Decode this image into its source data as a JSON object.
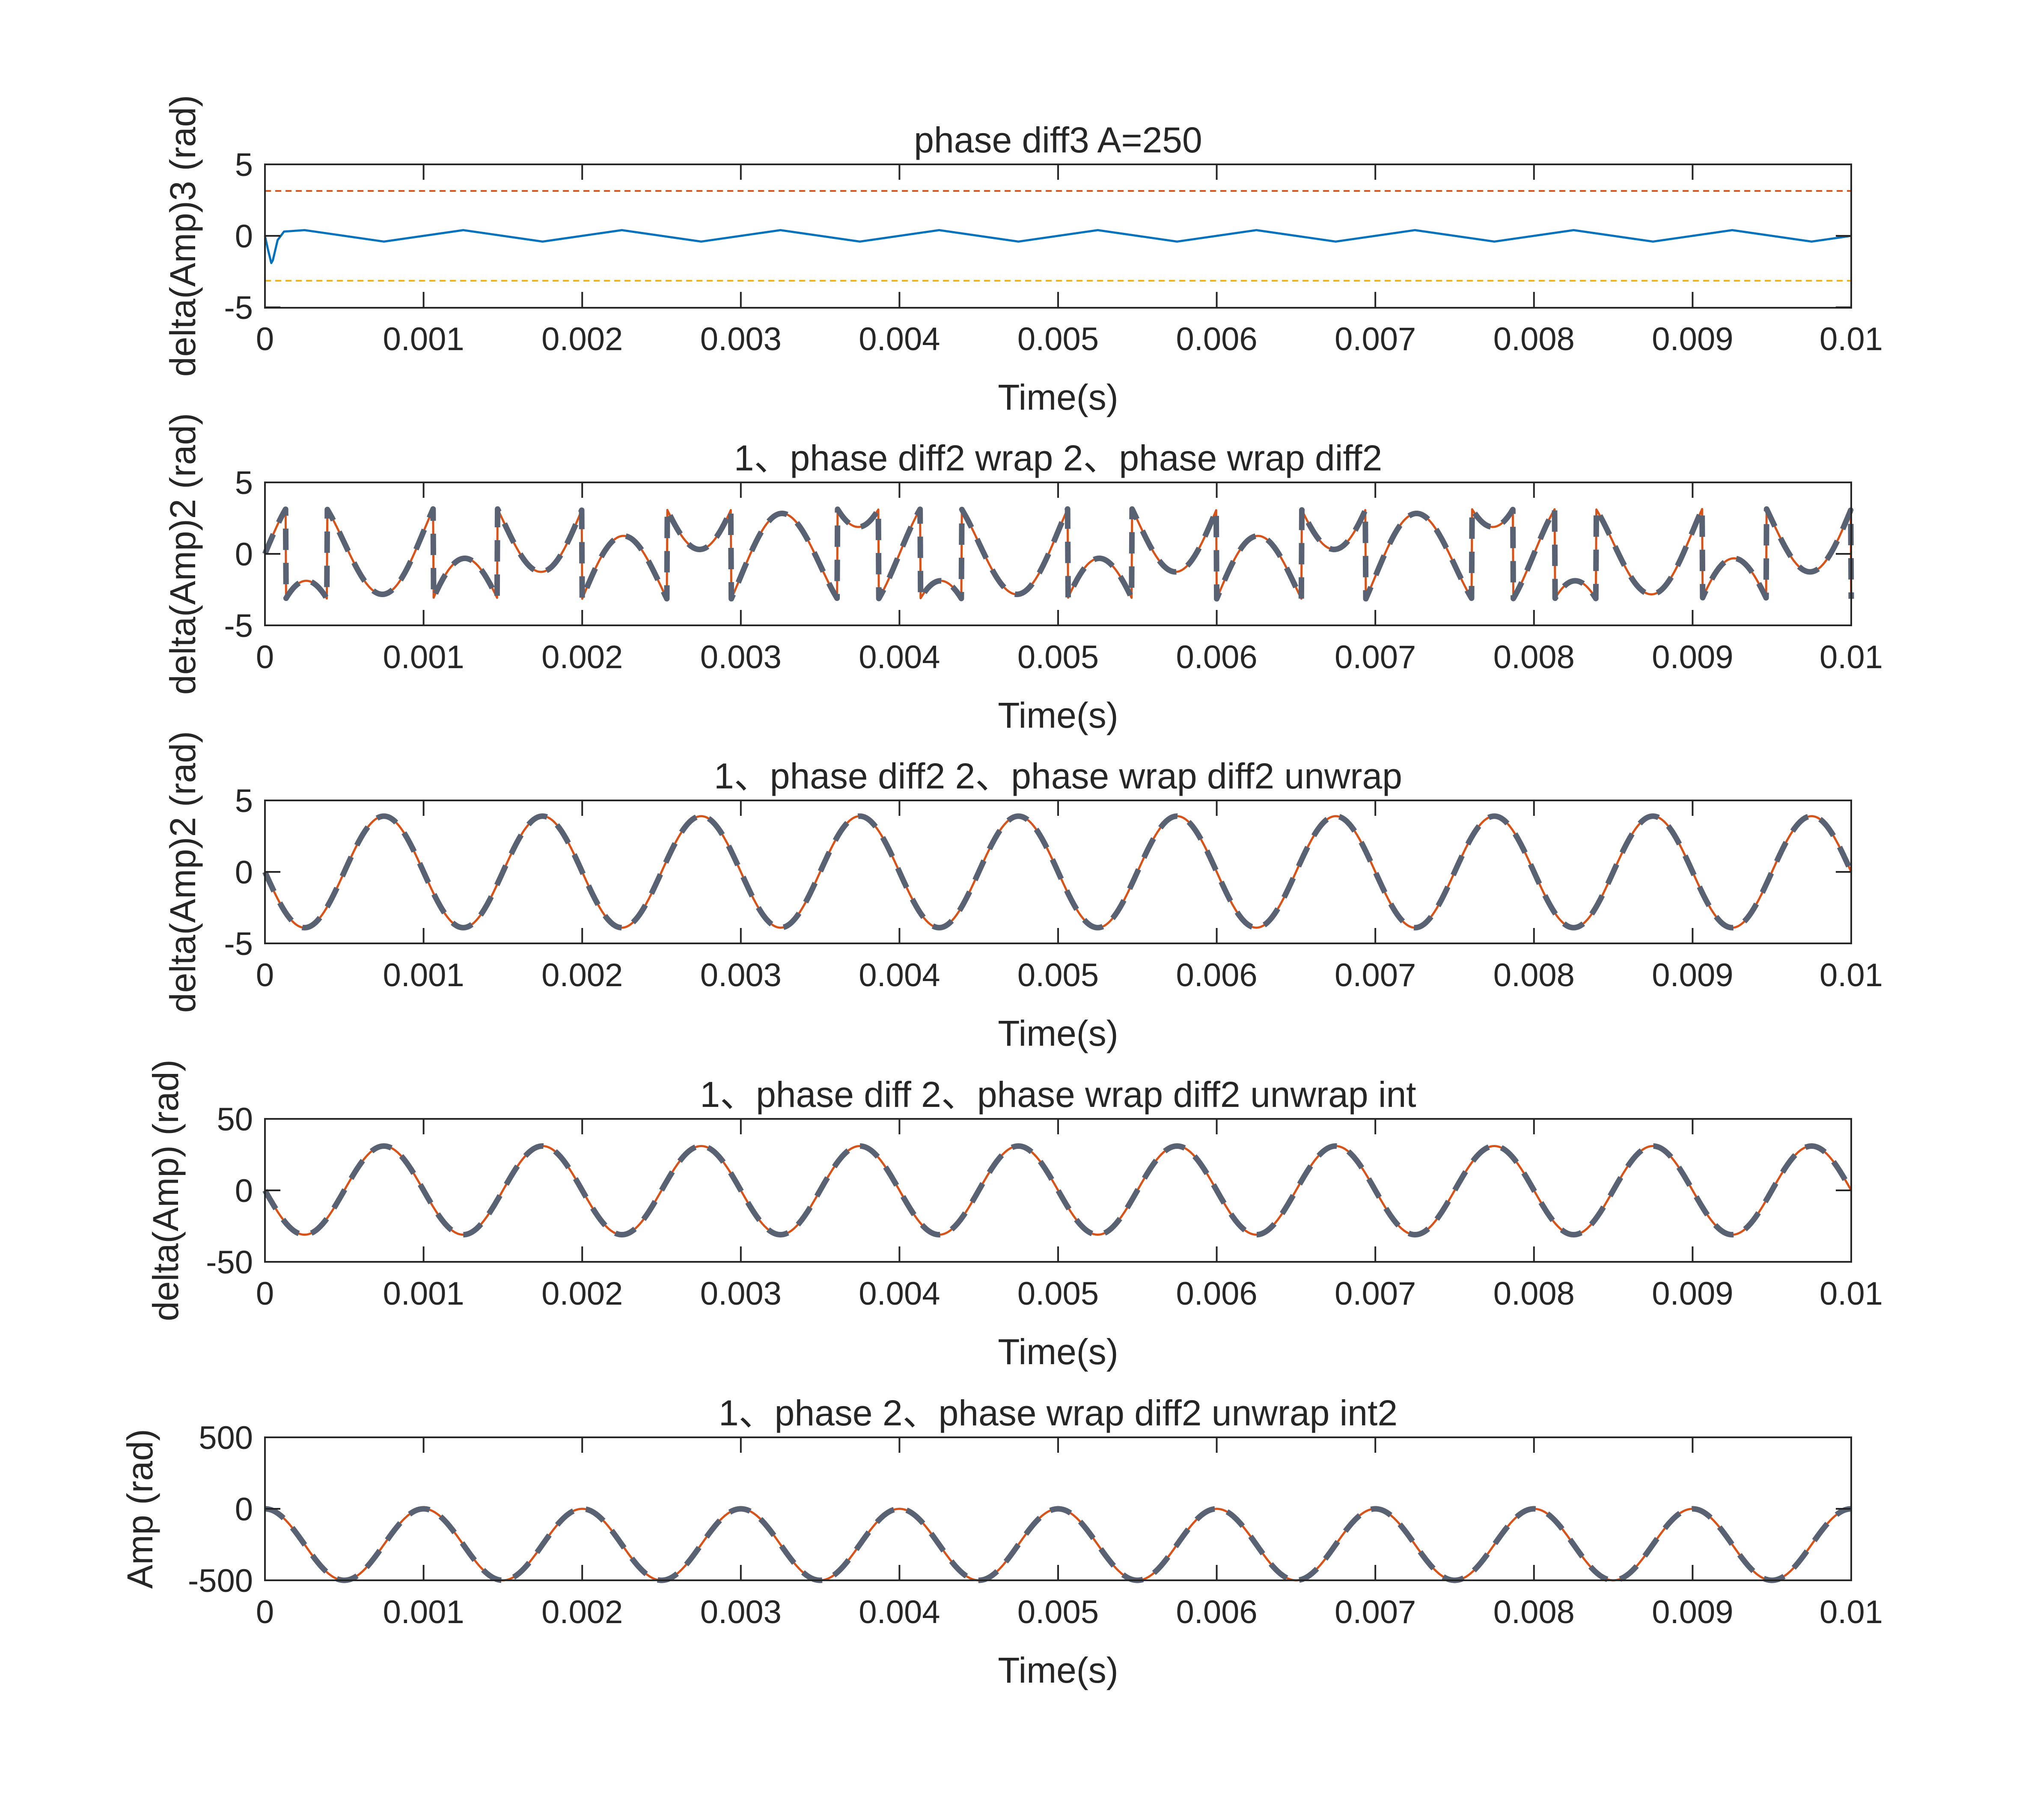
{
  "colors": {
    "blue": "#0072BD",
    "orange": "#D95319",
    "yellow": "#EDB120",
    "gray": "#596273"
  },
  "chart_data": [
    {
      "type": "line",
      "title": "phase diff3 A=250",
      "xlabel": "Time(s)",
      "ylabel": "delta(Amp)3 (rad)",
      "xlim": [
        0,
        0.01
      ],
      "ylim": [
        -5,
        5
      ],
      "xticks": [
        "0",
        "0.001",
        "0.002",
        "0.003",
        "0.004",
        "0.005",
        "0.006",
        "0.007",
        "0.008",
        "0.009",
        "0.01"
      ],
      "yticks": [
        "5",
        "0",
        "-5"
      ],
      "series": [
        {
          "style": "solid",
          "color": "#0072BD",
          "x": [
            0,
            2e-05,
            4e-05,
            5e-05,
            8e-05,
            0.00012,
            0.00025,
            0.0005,
            0.00075,
            0.001,
            0.00125,
            0.0015,
            0.00175,
            0.002,
            0.00225,
            0.0025,
            0.00275,
            0.003,
            0.00325,
            0.0035,
            0.00375,
            0.004,
            0.00425,
            0.0045,
            0.00475,
            0.005,
            0.00525,
            0.0055,
            0.00575,
            0.006,
            0.00625,
            0.0065,
            0.00675,
            0.007,
            0.00725,
            0.0075,
            0.00775,
            0.008,
            0.00825,
            0.0085,
            0.00875,
            0.009,
            0.00925,
            0.0095,
            0.00975,
            0.01
          ],
          "y": [
            0,
            -1.0,
            -1.9,
            -1.7,
            -0.3,
            0.3,
            0.4,
            0,
            -0.4,
            0,
            0.4,
            0,
            -0.4,
            0,
            0.4,
            0,
            -0.4,
            0,
            0.4,
            0,
            -0.4,
            0,
            0.4,
            0,
            -0.4,
            0,
            0.4,
            0,
            -0.4,
            0,
            0.4,
            0,
            -0.4,
            0,
            0.4,
            0,
            -0.4,
            0,
            0.4,
            0,
            -0.4,
            0,
            0.4,
            0,
            -0.4,
            0
          ]
        },
        {
          "style": "dashed",
          "color": "#D95319",
          "x": [
            0,
            0.01
          ],
          "y": [
            3.14,
            3.14
          ]
        },
        {
          "style": "dashed",
          "color": "#EDB120",
          "x": [
            0,
            0.01
          ],
          "y": [
            -3.14,
            -3.14
          ]
        }
      ]
    },
    {
      "type": "line",
      "title": "1、phase diff2 wrap 2、phase wrap diff2",
      "xlabel": "Time(s)",
      "ylabel": "delta(Amp)2 (rad)",
      "xlim": [
        0,
        0.01
      ],
      "ylim": [
        -5,
        5
      ],
      "xticks": [
        "0",
        "0.001",
        "0.002",
        "0.003",
        "0.004",
        "0.005",
        "0.006",
        "0.007",
        "0.008",
        "0.009",
        "0.01"
      ],
      "yticks": [
        "5",
        "0",
        "-5"
      ],
      "function": "wrapToPi of 4·sin(2π·1000·t) + 2π·250·t",
      "series": [
        {
          "style": "solid",
          "color": "#D95319",
          "amplitude": 4,
          "frequency": 1000,
          "drift_rate": 1570.8,
          "wrapped": true
        },
        {
          "style": "dashed",
          "color": "#596273",
          "amplitude": 4,
          "frequency": 1000,
          "drift_rate": 1570.8,
          "wrapped": true
        }
      ]
    },
    {
      "type": "line",
      "title": "1、phase diff2 2、phase wrap diff2 unwrap",
      "xlabel": "Time(s)",
      "ylabel": "delta(Amp)2 (rad)",
      "xlim": [
        0,
        0.01
      ],
      "ylim": [
        -5,
        5
      ],
      "xticks": [
        "0",
        "0.001",
        "0.002",
        "0.003",
        "0.004",
        "0.005",
        "0.006",
        "0.007",
        "0.008",
        "0.009",
        "0.01"
      ],
      "yticks": [
        "5",
        "0",
        "-5"
      ],
      "function": "-3.9·sin(2π·1000·t)",
      "series": [
        {
          "style": "solid",
          "color": "#D95319",
          "amplitude": -3.9,
          "frequency": 1000
        },
        {
          "style": "dashed",
          "color": "#596273",
          "amplitude": -3.9,
          "frequency": 1000
        }
      ]
    },
    {
      "type": "line",
      "title": "1、phase diff  2、phase wrap diff2 unwrap int",
      "xlabel": "Time(s)",
      "ylabel": "delta(Amp) (rad)",
      "xlim": [
        0,
        0.01
      ],
      "ylim": [
        -50,
        50
      ],
      "xticks": [
        "0",
        "0.001",
        "0.002",
        "0.003",
        "0.004",
        "0.005",
        "0.006",
        "0.007",
        "0.008",
        "0.009",
        "0.01"
      ],
      "yticks": [
        "50",
        "0",
        "-50"
      ],
      "function": "-31·sin(2π·1000·t)",
      "series": [
        {
          "style": "solid",
          "color": "#D95319",
          "amplitude": -31,
          "frequency": 1000
        },
        {
          "style": "dashed",
          "color": "#596273",
          "amplitude": -31,
          "frequency": 1000
        }
      ]
    },
    {
      "type": "line",
      "title": "1、phase 2、phase wrap diff2 unwrap int2",
      "xlabel": "Time(s)",
      "ylabel": "Amp (rad)",
      "xlim": [
        0,
        0.01
      ],
      "ylim": [
        -500,
        500
      ],
      "xticks": [
        "0",
        "0.001",
        "0.002",
        "0.003",
        "0.004",
        "0.005",
        "0.006",
        "0.007",
        "0.008",
        "0.009",
        "0.01"
      ],
      "yticks": [
        "500",
        "0",
        "-500"
      ],
      "function": "250·cos(2π·1000·t) - 250",
      "series": [
        {
          "style": "solid",
          "color": "#D95319",
          "amplitude": 250,
          "offset": -250,
          "frequency": 1000
        },
        {
          "style": "dashed",
          "color": "#596273",
          "amplitude": 250,
          "offset": -250,
          "frequency": 1000
        }
      ]
    }
  ]
}
